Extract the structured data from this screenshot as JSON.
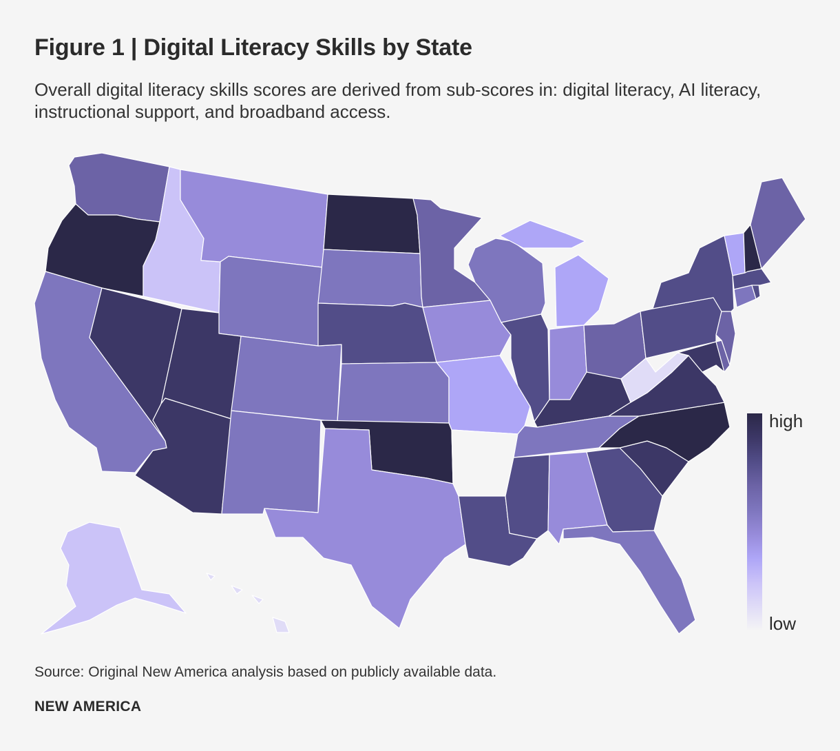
{
  "title": "Figure 1 | Digital Literacy Skills by State",
  "subtitle": "Overall digital literacy skills scores are derived from sub-scores in: digital literacy, AI literacy, instructional support, and broadband access.",
  "source": "Source: Original New America analysis based on publicly available data.",
  "brand": "NEW AMERICA",
  "legend": {
    "high_label": "high",
    "low_label": "low",
    "scale_colors": [
      "#2b2848",
      "#3c3766",
      "#524d88",
      "#6c63a6",
      "#7e76be",
      "#978bda",
      "#aea6f7",
      "#cbc3f8",
      "#e0dcf7",
      "#f5f5f5"
    ]
  },
  "palette": {
    "highest": "#2b2848",
    "very_high": "#3c3766",
    "high": "#524d88",
    "upper_mid": "#6c63a6",
    "mid": "#7e76be",
    "lower_mid": "#978bda",
    "low": "#aea6f7",
    "very_low": "#cbc3f8",
    "lowest_tint": "#e0dcf7",
    "lowest": "#f5f5f5"
  },
  "states": {
    "WA": "upper_mid",
    "OR": "highest",
    "CA": "mid",
    "NV": "very_high",
    "ID": "very_low",
    "MT": "lower_mid",
    "WY": "mid",
    "UT": "very_high",
    "AZ": "very_high",
    "CO": "mid",
    "NM": "mid",
    "ND": "highest",
    "SD": "mid",
    "NE": "high",
    "KS": "mid",
    "OK": "highest",
    "TX": "lower_mid",
    "MN": "upper_mid",
    "IA": "lower_mid",
    "MO": "low",
    "AR": "lowest",
    "LA": "high",
    "WI": "mid",
    "IL": "high",
    "MI": "low",
    "IN": "lower_mid",
    "OH": "upper_mid",
    "KY": "very_high",
    "TN": "mid",
    "MS": "high",
    "AL": "lower_mid",
    "GA": "high",
    "FL": "mid",
    "SC": "very_high",
    "NC": "highest",
    "VA": "very_high",
    "WV": "lowest_tint",
    "MD": "very_high",
    "DE": "upper_mid",
    "PA": "high",
    "NY": "high",
    "NJ": "upper_mid",
    "CT": "mid",
    "RI": "high",
    "MA": "high",
    "VT": "low",
    "NH": "highest",
    "ME": "upper_mid",
    "AK": "very_low",
    "HI": "lowest_tint"
  }
}
